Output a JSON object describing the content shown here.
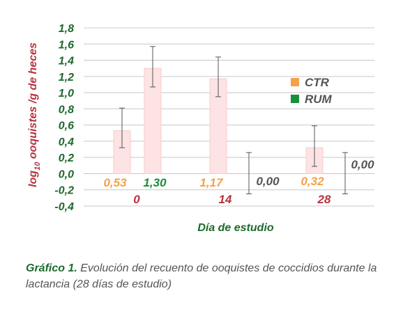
{
  "chart_data": {
    "type": "bar",
    "categories": [
      "0",
      "14",
      "28"
    ],
    "series": [
      {
        "name": "CTR",
        "values": [
          0.53,
          1.17,
          0.32
        ],
        "err_low": [
          0.32,
          0.95,
          0.09
        ],
        "err_high": [
          0.81,
          1.44,
          0.59
        ],
        "color": "#fde3e3",
        "legend_color": "#f5a147",
        "label_color": "#f5a147"
      },
      {
        "name": "RUM",
        "values": [
          1.3,
          0.0,
          0.0
        ],
        "err_low": [
          1.07,
          -0.25,
          -0.25
        ],
        "err_high": [
          1.57,
          0.26,
          0.26
        ],
        "color": "#fde3e3",
        "legend_color": "#1b8e3b",
        "label_color": "#1b8e3b"
      }
    ],
    "data_labels": [
      [
        "0,53",
        "1,17",
        "0,32"
      ],
      [
        "1,30",
        "0,00",
        "0,00"
      ]
    ],
    "rum_label_color_zero": "#555555",
    "yticks": [
      "1,8",
      "1,6",
      "1,4",
      "1,2",
      "1,0",
      "0,8",
      "0,6",
      "0,4",
      "0,2",
      "0,0",
      "-0,2",
      "-0,4"
    ],
    "ylim": [
      -0.4,
      1.8
    ],
    "ylabel_main": "log",
    "ylabel_sub": "10",
    "ylabel_rest": " ooquistes /g de heces",
    "ylabel_color": "#b8323e",
    "xlabel": "Día de estudio",
    "xlabel_color": "#1d6a2d",
    "grid": true,
    "legend": "right"
  },
  "caption": {
    "label": "Gráfico 1.",
    "text": " Evolución del recuento de ooquistes de coccidios durante la lactancia (28 días de estudio)"
  }
}
